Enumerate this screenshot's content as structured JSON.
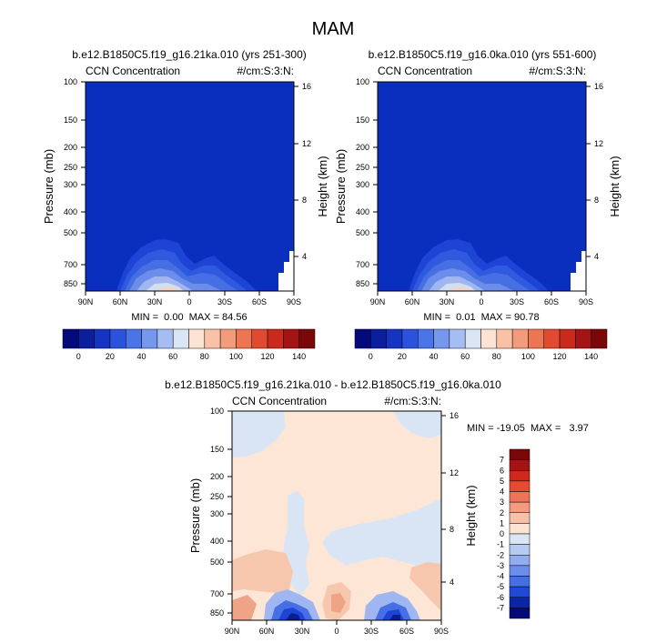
{
  "figure": {
    "title": "MAM",
    "colors": {
      "bg_blue": "#0a2fbf",
      "diff_bg": "#fde6d6"
    }
  },
  "chart_data": [
    {
      "type": "heatmap",
      "title": "b.e12.B1850C5.f19_g16.21ka.010 (yrs 251-300)",
      "left_label": "CCN Concentration",
      "right_label": "#/cm:S:3:N:",
      "ylabel": "Pressure (mb)",
      "ylabel_right": "Height (km)",
      "x_ticks": [
        "90N",
        "60N",
        "30N",
        "0",
        "30S",
        "60S",
        "90S"
      ],
      "y_ticks": [
        "100",
        "150",
        "200",
        "250",
        "300",
        "400",
        "500",
        "700",
        "850"
      ],
      "y_ticks_right": [
        "16",
        "12",
        "8",
        "4"
      ],
      "stats": "MIN =  0.00  MAX = 84.56",
      "colorbar_ticks": [
        "0",
        "20",
        "40",
        "60",
        "80",
        "100",
        "120",
        "140"
      ]
    },
    {
      "type": "heatmap",
      "title": "b.e12.B1850C5.f19_g16.0ka.010 (yrs 551-600)",
      "left_label": "CCN Concentration",
      "right_label": "#/cm:S:3:N:",
      "ylabel": "Pressure (mb)",
      "ylabel_right": "Height (km)",
      "x_ticks": [
        "90N",
        "60N",
        "30N",
        "0",
        "30S",
        "60S",
        "90S"
      ],
      "y_ticks": [
        "100",
        "150",
        "200",
        "250",
        "300",
        "400",
        "500",
        "700",
        "850"
      ],
      "y_ticks_right": [
        "16",
        "12",
        "8",
        "4"
      ],
      "stats": "MIN =  0.01  MAX = 90.78",
      "colorbar_ticks": [
        "0",
        "20",
        "40",
        "60",
        "80",
        "100",
        "120",
        "140"
      ]
    },
    {
      "type": "heatmap",
      "title": "b.e12.B1850C5.f19_g16.21ka.010 - b.e12.B1850C5.f19_g16.0ka.010",
      "left_label": "CCN Concentration",
      "right_label": "#/cm:S:3:N:",
      "ylabel": "Pressure (mb)",
      "ylabel_right": "Height (km)",
      "x_ticks": [
        "90N",
        "60N",
        "30N",
        "0",
        "30S",
        "60S",
        "90S"
      ],
      "y_ticks": [
        "100",
        "150",
        "200",
        "250",
        "300",
        "400",
        "500",
        "700",
        "850"
      ],
      "y_ticks_right": [
        "16",
        "12",
        "8",
        "4"
      ],
      "stats": "MIN = -19.05  MAX =   3.97",
      "colorbar_ticks": [
        "7",
        "6",
        "5",
        "4",
        "3",
        "2",
        "1",
        "0",
        "-1",
        "-2",
        "-3",
        "-4",
        "-5",
        "-6",
        "-7"
      ]
    }
  ]
}
